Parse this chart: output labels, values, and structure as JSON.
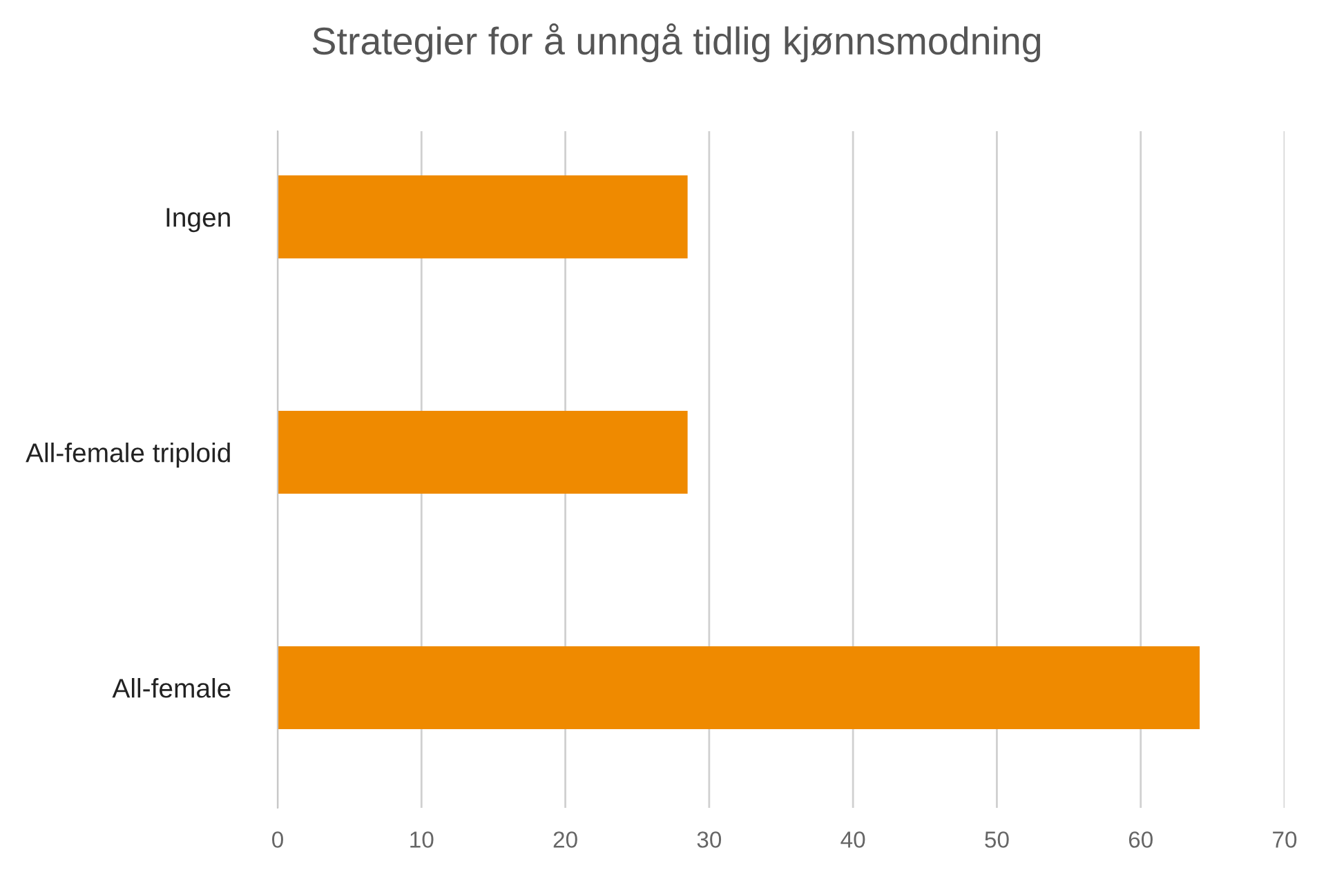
{
  "chart_data": {
    "type": "bar",
    "orientation": "horizontal",
    "title": "Strategier for å unngå tidlig kjønnsmodning",
    "categories": [
      "Ingen",
      "All-female triploid",
      "All-female"
    ],
    "values": [
      28.5,
      28.5,
      64.1
    ],
    "color": "#ef8a00",
    "xlim": [
      0,
      70
    ],
    "xticks": [
      0,
      10,
      20,
      30,
      40,
      50,
      60,
      70
    ],
    "grid": "x"
  }
}
